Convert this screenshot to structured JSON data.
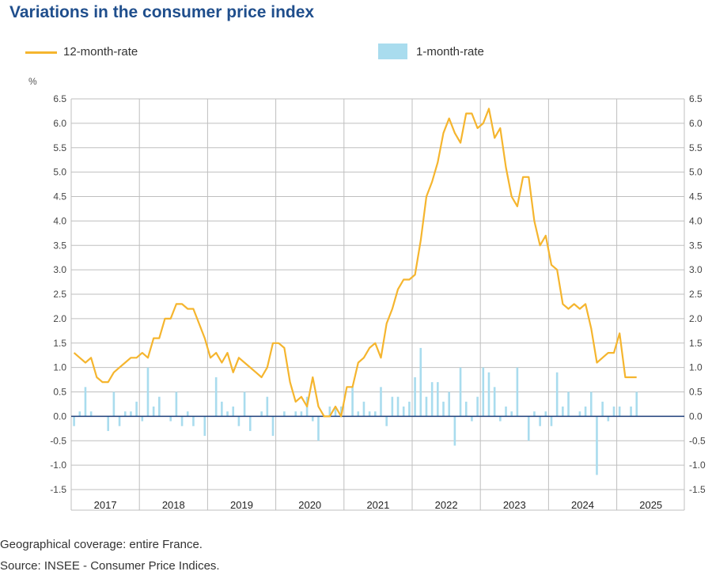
{
  "title": "Variations in the consumer price index",
  "legend": {
    "line_label": "12-month-rate",
    "bar_label": "1-month-rate"
  },
  "notes": {
    "coverage": "Geographical coverage: entire France.",
    "source": "Source: INSEE - Consumer Price Indices."
  },
  "colors": {
    "line": "#f5b52e",
    "bar": "#a9dcee",
    "zero": "#1f3f7a",
    "grid": "#bfbfbf",
    "title": "#1f4e8c"
  },
  "chart_data": {
    "type": "bar+line",
    "title": "Variations in the consumer price index",
    "ylabel": "%",
    "ylim": [
      -1.5,
      6.5
    ],
    "yticks": [
      "6.5",
      "6.0",
      "5.5",
      "5.0",
      "4.5",
      "4.0",
      "3.5",
      "3.0",
      "2.5",
      "2.0",
      "1.5",
      "1.0",
      "0.5",
      "0.0",
      "-0.5",
      "-1.0",
      "-1.5"
    ],
    "years": [
      "2017",
      "2018",
      "2019",
      "2020",
      "2021",
      "2022",
      "2023",
      "2024",
      "2025"
    ],
    "start_month": "2017-01",
    "series": [
      {
        "name": "12-month-rate",
        "type": "line",
        "values": [
          1.3,
          1.2,
          1.1,
          1.2,
          0.8,
          0.7,
          0.7,
          0.9,
          1.0,
          1.1,
          1.2,
          1.2,
          1.3,
          1.2,
          1.6,
          1.6,
          2.0,
          2.0,
          2.3,
          2.3,
          2.2,
          2.2,
          1.9,
          1.6,
          1.2,
          1.3,
          1.1,
          1.3,
          0.9,
          1.2,
          1.1,
          1.0,
          0.9,
          0.8,
          1.0,
          1.5,
          1.5,
          1.4,
          0.7,
          0.3,
          0.4,
          0.2,
          0.8,
          0.2,
          0.0,
          0.0,
          0.2,
          0.0,
          0.6,
          0.6,
          1.1,
          1.2,
          1.4,
          1.5,
          1.2,
          1.9,
          2.2,
          2.6,
          2.8,
          2.8,
          2.9,
          3.6,
          4.5,
          4.8,
          5.2,
          5.8,
          6.1,
          5.8,
          5.6,
          6.2,
          6.2,
          5.9,
          6.0,
          6.3,
          5.7,
          5.9,
          5.1,
          4.5,
          4.3,
          4.9,
          4.9,
          4.0,
          3.5,
          3.7,
          3.1,
          3.0,
          2.3,
          2.2,
          2.3,
          2.2,
          2.3,
          1.8,
          1.1,
          1.2,
          1.3,
          1.3,
          1.7,
          0.8,
          0.8,
          0.8
        ]
      },
      {
        "name": "1-month-rate",
        "type": "bar",
        "values": [
          -0.2,
          0.1,
          0.6,
          0.1,
          0.0,
          0.0,
          -0.3,
          0.5,
          -0.2,
          0.1,
          0.1,
          0.3,
          -0.1,
          1.0,
          0.2,
          0.4,
          0.0,
          -0.1,
          0.5,
          -0.2,
          0.1,
          -0.2,
          0.0,
          -0.4,
          0.0,
          0.8,
          0.3,
          0.1,
          0.2,
          -0.2,
          0.5,
          -0.3,
          0.0,
          0.1,
          0.4,
          -0.4,
          0.0,
          0.1,
          0.0,
          0.1,
          0.1,
          0.4,
          -0.1,
          -0.5,
          0.0,
          0.2,
          0.2,
          0.2,
          0.0,
          0.6,
          0.1,
          0.3,
          0.1,
          0.1,
          0.6,
          -0.2,
          0.4,
          0.4,
          0.2,
          0.3,
          0.8,
          1.4,
          0.4,
          0.7,
          0.7,
          0.3,
          0.5,
          -0.6,
          1.0,
          0.3,
          -0.1,
          0.4,
          1.0,
          0.9,
          0.6,
          -0.1,
          0.2,
          0.1,
          1.0,
          0.0,
          -0.5,
          0.1,
          -0.2,
          0.1,
          -0.2,
          0.9,
          0.2,
          0.5,
          0.0,
          0.1,
          0.2,
          0.5,
          -1.2,
          0.3,
          -0.1,
          0.2,
          0.2,
          0.0,
          0.2,
          0.5
        ]
      }
    ]
  }
}
